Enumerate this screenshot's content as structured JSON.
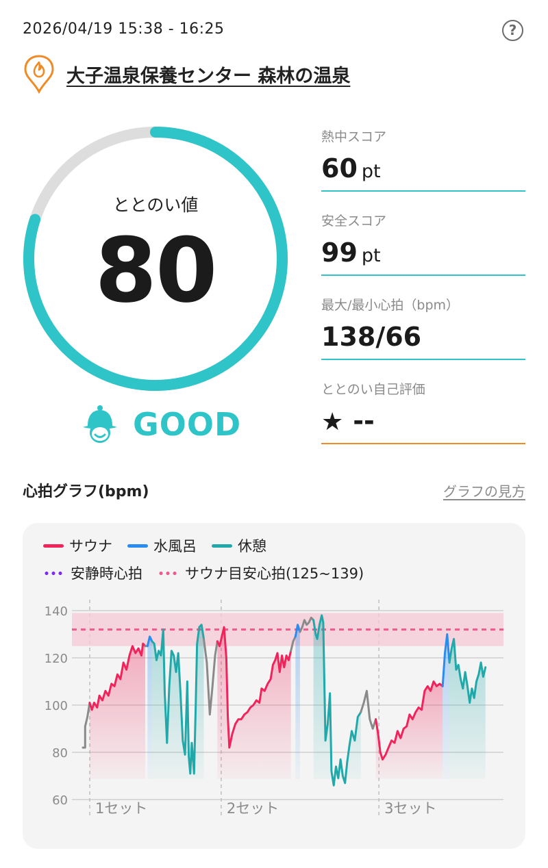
{
  "header": {
    "datetime": "2026/04/19 15:38 - 16:25",
    "help_label": "?",
    "facility_name": "大子温泉保養センター 森林の温泉"
  },
  "gauge": {
    "label": "ととのい値",
    "value": "80",
    "fraction": 0.8,
    "progress_color": "#2ec4c8",
    "track_color": "#dddddd"
  },
  "rating": {
    "text": "GOOD",
    "color": "#2ec4c8"
  },
  "stats": {
    "heat": {
      "label": "熱中スコア",
      "value": "60",
      "unit": "pt"
    },
    "safety": {
      "label": "安全スコア",
      "value": "99",
      "unit": "pt"
    },
    "heart_rate": {
      "label": "最大/最小心拍（bpm）",
      "value": "138/66"
    },
    "self_eval": {
      "label": "ととのい自己評価",
      "star": "★",
      "value": "--"
    }
  },
  "graph": {
    "title": "心拍グラフ(bpm)",
    "how_to_link": "グラフの見方"
  },
  "legend": {
    "sauna": "サウナ",
    "cold_bath": "水風呂",
    "rest": "休憩",
    "resting_hr": "安静時心拍",
    "target_hr": "サウナ目安心拍(125~139)"
  },
  "colors": {
    "sauna": "#f0245a",
    "cold_bath": "#2a8cf0",
    "rest": "#22a8a8",
    "transition": "#8a8a8a",
    "resting": "#7b2cf0",
    "target": "#ef5a8a"
  },
  "chart_data": {
    "type": "line",
    "ylim": [
      60,
      140
    ],
    "yticks": [
      140,
      120,
      100,
      80,
      60
    ],
    "set_labels": [
      "1セット",
      "2セット",
      "3セット"
    ],
    "set_starts_min": [
      0,
      17.5,
      38.5
    ],
    "target_band": [
      125,
      139
    ],
    "target_line": 132,
    "x_range_min": [
      0,
      47
    ],
    "segments": [
      {
        "type": "transition",
        "points": [
          [
            0,
            82
          ],
          [
            0.3,
            82
          ],
          [
            0.3,
            91
          ],
          [
            0.6,
            95
          ],
          [
            0.9,
            101
          ]
        ]
      },
      {
        "type": "sauna",
        "points": [
          [
            0.9,
            101
          ],
          [
            1.2,
            98
          ],
          [
            1.5,
            101
          ],
          [
            1.9,
            99
          ],
          [
            2.2,
            104
          ],
          [
            2.6,
            102
          ],
          [
            3.0,
            106
          ],
          [
            3.4,
            104
          ],
          [
            3.8,
            109
          ],
          [
            4.2,
            108
          ],
          [
            4.6,
            113
          ],
          [
            5.0,
            111
          ],
          [
            5.4,
            118
          ],
          [
            5.8,
            115
          ],
          [
            6.2,
            121
          ],
          [
            6.6,
            125
          ],
          [
            7.0,
            122
          ],
          [
            7.4,
            124
          ],
          [
            7.8,
            121
          ],
          [
            8.0,
            126
          ],
          [
            8.3,
            125
          ]
        ]
      },
      {
        "type": "transition",
        "points": [
          [
            8.3,
            125
          ],
          [
            8.6,
            125
          ]
        ]
      },
      {
        "type": "cold",
        "points": [
          [
            8.6,
            125
          ],
          [
            8.9,
            129
          ],
          [
            9.2,
            127
          ]
        ]
      },
      {
        "type": "rest",
        "points": [
          [
            9.2,
            127
          ],
          [
            9.5,
            126
          ],
          [
            9.8,
            119
          ],
          [
            10.1,
            123
          ],
          [
            10.4,
            121
          ],
          [
            10.7,
            132
          ],
          [
            10.9,
            105
          ],
          [
            11.2,
            84
          ],
          [
            11.5,
            108
          ],
          [
            11.8,
            123
          ],
          [
            12.1,
            121
          ],
          [
            12.4,
            114
          ],
          [
            12.7,
            122
          ],
          [
            13.0,
            105
          ],
          [
            13.3,
            85
          ],
          [
            13.6,
            79
          ],
          [
            13.9,
            110
          ],
          [
            14.1,
            78
          ],
          [
            14.3,
            71
          ],
          [
            14.5,
            84
          ],
          [
            14.8,
            71
          ],
          [
            15.0,
            97
          ],
          [
            15.2,
            126
          ],
          [
            15.5,
            133
          ],
          [
            15.8,
            134
          ],
          [
            16.1,
            128
          ]
        ]
      },
      {
        "type": "transition",
        "points": [
          [
            16.1,
            128
          ],
          [
            16.5,
            118
          ],
          [
            16.9,
            96
          ],
          [
            17.2,
            106
          ],
          [
            17.6,
            121
          ],
          [
            17.9,
            127
          ]
        ]
      },
      {
        "type": "sauna",
        "points": [
          [
            17.9,
            127
          ],
          [
            18.2,
            125
          ],
          [
            18.5,
            129
          ],
          [
            18.8,
            133
          ],
          [
            19.1,
            120
          ],
          [
            19.3,
            95
          ],
          [
            19.5,
            82
          ],
          [
            19.9,
            88
          ],
          [
            20.3,
            92
          ],
          [
            20.7,
            94
          ],
          [
            21.1,
            94
          ],
          [
            21.5,
            96
          ],
          [
            21.9,
            97
          ],
          [
            22.3,
            99
          ],
          [
            22.7,
            100
          ],
          [
            23.1,
            102
          ],
          [
            23.5,
            101
          ],
          [
            23.8,
            107
          ],
          [
            24.2,
            106
          ],
          [
            24.6,
            109
          ],
          [
            25.0,
            111
          ],
          [
            25.3,
            117
          ],
          [
            25.6,
            119
          ],
          [
            25.9,
            122
          ],
          [
            26.2,
            114
          ],
          [
            26.5,
            121
          ],
          [
            26.8,
            116
          ],
          [
            27.1,
            121
          ],
          [
            27.4,
            119
          ],
          [
            27.7,
            123
          ]
        ]
      },
      {
        "type": "transition",
        "points": [
          [
            27.7,
            123
          ],
          [
            28.0,
            127
          ],
          [
            28.3,
            129
          ]
        ]
      },
      {
        "type": "cold",
        "points": [
          [
            28.3,
            129
          ],
          [
            28.6,
            134
          ],
          [
            28.9,
            131
          ]
        ]
      },
      {
        "type": "transition",
        "points": [
          [
            28.9,
            131
          ],
          [
            29.2,
            133
          ],
          [
            29.5,
            136
          ],
          [
            29.8,
            134
          ],
          [
            30.1,
            135
          ],
          [
            30.4,
            137
          ],
          [
            30.7,
            136
          ]
        ]
      },
      {
        "type": "rest",
        "points": [
          [
            30.7,
            136
          ],
          [
            31.0,
            130
          ],
          [
            31.2,
            128
          ],
          [
            31.5,
            134
          ],
          [
            31.8,
            138
          ],
          [
            32.0,
            135
          ],
          [
            32.3,
            85
          ],
          [
            32.6,
            92
          ],
          [
            32.9,
            105
          ],
          [
            33.1,
            72
          ],
          [
            33.4,
            66
          ],
          [
            33.7,
            74
          ],
          [
            34.0,
            69
          ],
          [
            34.3,
            77
          ],
          [
            34.6,
            70
          ],
          [
            34.9,
            67
          ],
          [
            35.2,
            76
          ],
          [
            35.5,
            83
          ],
          [
            35.8,
            89
          ],
          [
            36.2,
            85
          ],
          [
            36.6,
            95
          ],
          [
            37.0,
            97
          ]
        ]
      },
      {
        "type": "transition",
        "points": [
          [
            37.0,
            97
          ],
          [
            37.4,
            101
          ],
          [
            37.8,
            106
          ],
          [
            38.2,
            94
          ],
          [
            38.6,
            90
          ],
          [
            39.0,
            94
          ]
        ]
      },
      {
        "type": "sauna",
        "points": [
          [
            39.0,
            94
          ],
          [
            39.3,
            88
          ],
          [
            39.6,
            80
          ],
          [
            39.9,
            77
          ],
          [
            40.3,
            79
          ],
          [
            40.7,
            82
          ],
          [
            41.1,
            85
          ],
          [
            41.5,
            84
          ],
          [
            41.9,
            89
          ],
          [
            42.3,
            86
          ],
          [
            42.7,
            90
          ],
          [
            43.1,
            91
          ],
          [
            43.5,
            96
          ],
          [
            43.9,
            94
          ],
          [
            44.3,
            97
          ],
          [
            44.7,
            99
          ],
          [
            45.1,
            98
          ],
          [
            45.5,
            106
          ],
          [
            45.9,
            108
          ],
          [
            46.3,
            106
          ],
          [
            46.7,
            110
          ],
          [
            47.1,
            108
          ],
          [
            47.5,
            109
          ],
          [
            47.9,
            108
          ]
        ]
      },
      {
        "type": "cold",
        "points": [
          [
            47.9,
            108
          ],
          [
            48.2,
            122
          ],
          [
            48.5,
            130
          ],
          [
            48.8,
            118
          ]
        ]
      },
      {
        "type": "rest",
        "points": [
          [
            48.8,
            118
          ],
          [
            49.1,
            124
          ],
          [
            49.4,
            128
          ],
          [
            49.7,
            115
          ],
          [
            50.0,
            117
          ],
          [
            50.3,
            111
          ],
          [
            50.6,
            107
          ],
          [
            50.9,
            114
          ],
          [
            51.2,
            108
          ],
          [
            51.5,
            101
          ],
          [
            51.8,
            107
          ],
          [
            52.1,
            103
          ],
          [
            52.4,
            110
          ],
          [
            52.7,
            113
          ],
          [
            53.0,
            118
          ],
          [
            53.3,
            112
          ],
          [
            53.6,
            116
          ]
        ]
      }
    ]
  }
}
